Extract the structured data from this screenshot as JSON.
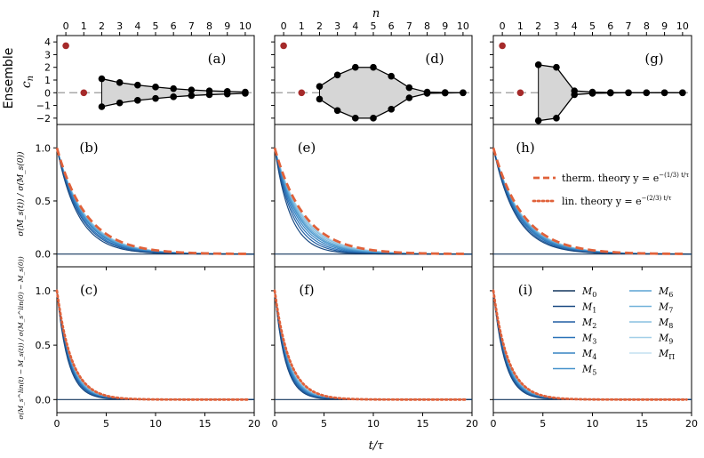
{
  "figure": {
    "top_xlabel": "n",
    "bottom_xlabel": "t/τ",
    "row_labels": {
      "ensemble_title": "Ensemble",
      "ensemble_ylabel": "c",
      "ensemble_ylabel_sub": "n",
      "middle": "σ(M_s(t)) / σ(M_s(0))",
      "bottom": "σ(M_s^lin(t) − M_s(t)) / σ(M_s^lin(0) − M_s(0))"
    },
    "panel_labels": [
      "(a)",
      "(b)",
      "(c)",
      "(d)",
      "(e)",
      "(f)",
      "(g)",
      "(h)",
      "(i)"
    ]
  },
  "legend_theory": [
    {
      "text": "therm. theory y = e^{−(1/3)(t/τ)}",
      "main": "therm. theory  y = e",
      "exp": "−(1/3) t/τ",
      "style": "dashed",
      "color": "#e0613a"
    },
    {
      "text": "lin. theory y = e^{−(2/3)(t/τ)}",
      "main": "lin. theory  y = e",
      "exp": "−(2/3) t/τ",
      "style": "dotted",
      "color": "#e0613a"
    }
  ],
  "legend_ensembles": [
    {
      "name": "M0",
      "base": "M",
      "sub": "0",
      "color": "#13365e"
    },
    {
      "name": "M1",
      "base": "M",
      "sub": "1",
      "color": "#1a4a82"
    },
    {
      "name": "M2",
      "base": "M",
      "sub": "2",
      "color": "#215fa3"
    },
    {
      "name": "M3",
      "base": "M",
      "sub": "3",
      "color": "#2a72b8"
    },
    {
      "name": "M4",
      "base": "M",
      "sub": "4",
      "color": "#3683c2"
    },
    {
      "name": "M5",
      "base": "M",
      "sub": "5",
      "color": "#4793cb"
    },
    {
      "name": "M6",
      "base": "M",
      "sub": "6",
      "color": "#5ba3d3"
    },
    {
      "name": "M7",
      "base": "M",
      "sub": "7",
      "color": "#72b2da"
    },
    {
      "name": "M8",
      "base": "M",
      "sub": "8",
      "color": "#8ac1e1"
    },
    {
      "name": "M9",
      "base": "M",
      "sub": "9",
      "color": "#a3cfe8"
    },
    {
      "name": "MΠ",
      "base": "M",
      "sub": "Π",
      "color": "#c4e0f0"
    }
  ],
  "chart_data": [
    {
      "type": "line",
      "panel": "(a)",
      "title": "",
      "xlabel": "n",
      "ylabel": "c_n",
      "xlim": [
        -0.5,
        10.5
      ],
      "ylim": [
        -2.5,
        4.5
      ],
      "xticks": [
        0,
        1,
        2,
        3,
        4,
        5,
        6,
        7,
        8,
        9,
        10
      ],
      "yticks": [
        -2,
        -1,
        0,
        1,
        2,
        3,
        4
      ],
      "red_points": [
        {
          "x": 0,
          "y": 3.7
        },
        {
          "x": 1,
          "y": 0
        }
      ],
      "upper": {
        "x": [
          2,
          3,
          4,
          5,
          6,
          7,
          8,
          9,
          10
        ],
        "y": [
          1.1,
          0.8,
          0.6,
          0.45,
          0.32,
          0.22,
          0.15,
          0.1,
          0.05
        ]
      },
      "lower": {
        "x": [
          2,
          3,
          4,
          5,
          6,
          7,
          8,
          9,
          10
        ],
        "y": [
          -1.1,
          -0.8,
          -0.6,
          -0.45,
          -0.32,
          -0.22,
          -0.15,
          -0.1,
          -0.05
        ]
      }
    },
    {
      "type": "line",
      "panel": "(d)",
      "title": "",
      "xlabel": "n",
      "ylabel": "",
      "xlim": [
        -0.5,
        10.5
      ],
      "ylim": [
        -2.5,
        4.5
      ],
      "xticks": [
        0,
        1,
        2,
        3,
        4,
        5,
        6,
        7,
        8,
        9,
        10
      ],
      "yticks": [
        -2,
        -1,
        0,
        1,
        2,
        3,
        4
      ],
      "red_points": [
        {
          "x": 0,
          "y": 3.7
        },
        {
          "x": 1,
          "y": 0
        }
      ],
      "upper": {
        "x": [
          2,
          3,
          4,
          5,
          6,
          7,
          8,
          9,
          10
        ],
        "y": [
          0.5,
          1.4,
          2.0,
          2.0,
          1.3,
          0.4,
          0.05,
          0.02,
          0
        ]
      },
      "lower": {
        "x": [
          2,
          3,
          4,
          5,
          6,
          7,
          8,
          9,
          10
        ],
        "y": [
          -0.5,
          -1.4,
          -2.0,
          -2.0,
          -1.3,
          -0.4,
          -0.05,
          -0.02,
          0
        ]
      }
    },
    {
      "type": "line",
      "panel": "(g)",
      "title": "",
      "xlabel": "n",
      "ylabel": "",
      "xlim": [
        -0.5,
        10.5
      ],
      "ylim": [
        -2.5,
        4.5
      ],
      "xticks": [
        0,
        1,
        2,
        3,
        4,
        5,
        6,
        7,
        8,
        9,
        10
      ],
      "yticks": [
        -2,
        -1,
        0,
        1,
        2,
        3,
        4
      ],
      "red_points": [
        {
          "x": 0,
          "y": 3.7
        },
        {
          "x": 1,
          "y": 0
        }
      ],
      "upper": {
        "x": [
          2,
          3,
          4,
          5,
          6,
          7,
          8,
          9,
          10
        ],
        "y": [
          2.2,
          2.0,
          0.15,
          0.05,
          0.02,
          0,
          0,
          0,
          0
        ]
      },
      "lower": {
        "x": [
          2,
          3,
          4,
          5,
          6,
          7,
          8,
          9,
          10
        ],
        "y": [
          -2.2,
          -2.0,
          -0.15,
          -0.05,
          -0.02,
          0,
          0,
          0,
          0
        ]
      }
    },
    {
      "type": "line",
      "panel": "(b)",
      "xlim": [
        0,
        20
      ],
      "ylim": [
        -0.12,
        1.22
      ],
      "xticks": [
        0,
        5,
        10,
        15,
        20
      ],
      "yticks": [
        0.0,
        0.5,
        1.0
      ],
      "theory": {
        "name": "therm. theory",
        "rate": 0.3333,
        "style": "dashed",
        "x_max": 19.5
      },
      "ensemble_rates": [
        0,
        0.46,
        0.43,
        0.41,
        0.39,
        0.38,
        0.37,
        0.36,
        0.355,
        0.35,
        0.345
      ]
    },
    {
      "type": "line",
      "panel": "(e)",
      "xlim": [
        0,
        20
      ],
      "ylim": [
        -0.12,
        1.22
      ],
      "xticks": [
        0,
        5,
        10,
        15,
        20
      ],
      "yticks": [
        0.0,
        0.5,
        1.0
      ],
      "theory": {
        "name": "therm. theory",
        "rate": 0.3333,
        "style": "dashed",
        "x_max": 19.5
      },
      "ensemble_rates": [
        0,
        0.62,
        0.55,
        0.5,
        0.46,
        0.43,
        0.41,
        0.39,
        0.37,
        0.36,
        0.35
      ]
    },
    {
      "type": "line",
      "panel": "(h)",
      "xlim": [
        0,
        20
      ],
      "ylim": [
        -0.12,
        1.22
      ],
      "xticks": [
        0,
        5,
        10,
        15,
        20
      ],
      "yticks": [
        0.0,
        0.5,
        1.0
      ],
      "theory": {
        "name": "therm. theory",
        "rate": 0.3333,
        "style": "dashed",
        "x_max": 19.5
      },
      "ensemble_rates": [
        0,
        0.44,
        0.42,
        0.4,
        0.385,
        0.375,
        0.365,
        0.36,
        0.355,
        0.35,
        0.345
      ]
    },
    {
      "type": "line",
      "panel": "(c)",
      "xlim": [
        0,
        20
      ],
      "ylim": [
        -0.12,
        1.22
      ],
      "xticks": [
        0,
        5,
        10,
        15,
        20
      ],
      "yticks": [
        0.0,
        0.5,
        1.0
      ],
      "theory": {
        "name": "lin. theory",
        "rate": 0.6667,
        "style": "dotted",
        "x_max": 19.5
      },
      "ensemble_rates": [
        0,
        0.9,
        0.85,
        0.82,
        0.8,
        0.78,
        0.76,
        0.74,
        0.72,
        0.7,
        0.69
      ]
    },
    {
      "type": "line",
      "panel": "(f)",
      "xlim": [
        0,
        20
      ],
      "ylim": [
        -0.12,
        1.22
      ],
      "xticks": [
        0,
        5,
        10,
        15,
        20
      ],
      "yticks": [
        0.0,
        0.5,
        1.0
      ],
      "theory": {
        "name": "lin. theory",
        "rate": 0.6667,
        "style": "dotted",
        "x_max": 19.5
      },
      "ensemble_rates": [
        0,
        0.95,
        0.9,
        0.86,
        0.83,
        0.8,
        0.78,
        0.76,
        0.74,
        0.72,
        0.7
      ]
    },
    {
      "type": "line",
      "panel": "(i)",
      "xlim": [
        0,
        20
      ],
      "ylim": [
        -0.12,
        1.22
      ],
      "xticks": [
        0,
        5,
        10,
        15,
        20
      ],
      "yticks": [
        0.0,
        0.5,
        1.0
      ],
      "theory": {
        "name": "lin. theory",
        "rate": 0.6667,
        "style": "dotted",
        "x_max": 19.5
      },
      "ensemble_rates": [
        0,
        0.88,
        0.84,
        0.81,
        0.79,
        0.77,
        0.75,
        0.73,
        0.72,
        0.7,
        0.69
      ]
    }
  ]
}
